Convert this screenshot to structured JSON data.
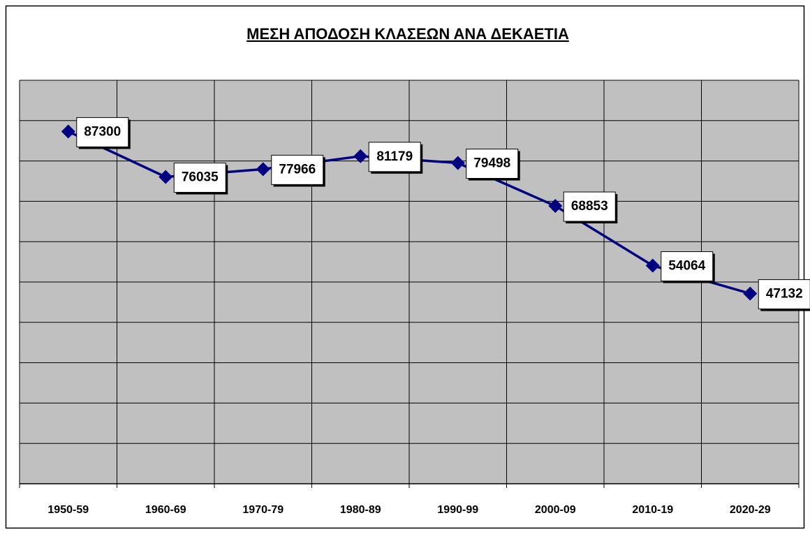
{
  "chart_data": {
    "type": "line",
    "title": "ΜΕΣΗ ΑΠΟΔΟΣΗ ΚΛΑΣΕΩΝ ΑΝΑ ΔΕΚΑΕΤΙΑ",
    "categories": [
      "1950-59",
      "1960-69",
      "1970-79",
      "1980-89",
      "1990-99",
      "2000-09",
      "2010-19",
      "2020-29"
    ],
    "series": [
      {
        "name": "ΜΕΣΗ ΑΠΟΔΟΣΗ",
        "color": "#000080",
        "values": [
          87300,
          76035,
          77966,
          81179,
          79498,
          68853,
          54064,
          47132
        ]
      }
    ],
    "ylim": [
      0,
      100000
    ],
    "yticks": [
      0,
      10000,
      20000,
      30000,
      40000,
      50000,
      60000,
      70000,
      80000,
      90000,
      100000
    ],
    "grid": true
  }
}
